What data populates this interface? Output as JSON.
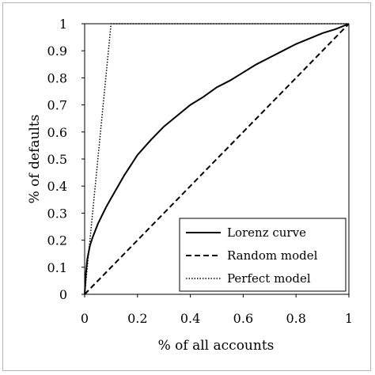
{
  "chart_data": {
    "type": "line",
    "xlabel": "% of all accounts",
    "ylabel": "% of defaults",
    "xlim": [
      0,
      1
    ],
    "ylim": [
      0,
      1
    ],
    "x_ticks": [
      "0",
      "0.2",
      "0.4",
      "0.6",
      "0.8",
      "1"
    ],
    "y_ticks": [
      "0",
      "0.1",
      "0.2",
      "0.3",
      "0.4",
      "0.5",
      "0.6",
      "0.7",
      "0.8",
      "0.9",
      "1"
    ],
    "grid": false,
    "legend_position": "bottom-right",
    "series": [
      {
        "name": "Lorenz curve",
        "style": "solid",
        "color": "#000000",
        "x": [
          0,
          0.005,
          0.01,
          0.02,
          0.03,
          0.05,
          0.08,
          0.1,
          0.15,
          0.2,
          0.25,
          0.3,
          0.35,
          0.4,
          0.45,
          0.5,
          0.55,
          0.6,
          0.65,
          0.7,
          0.75,
          0.8,
          0.85,
          0.9,
          0.95,
          1
        ],
        "y": [
          0,
          0.08,
          0.13,
          0.18,
          0.21,
          0.26,
          0.32,
          0.355,
          0.44,
          0.515,
          0.57,
          0.62,
          0.66,
          0.7,
          0.73,
          0.765,
          0.79,
          0.82,
          0.85,
          0.875,
          0.9,
          0.925,
          0.945,
          0.965,
          0.98,
          1
        ]
      },
      {
        "name": "Random model",
        "style": "dashed",
        "color": "#000000",
        "x": [
          0,
          1
        ],
        "y": [
          0,
          1
        ]
      },
      {
        "name": "Perfect model",
        "style": "dotted",
        "color": "#000000",
        "x": [
          0,
          0.1,
          1
        ],
        "y": [
          0,
          1,
          1
        ]
      }
    ]
  }
}
